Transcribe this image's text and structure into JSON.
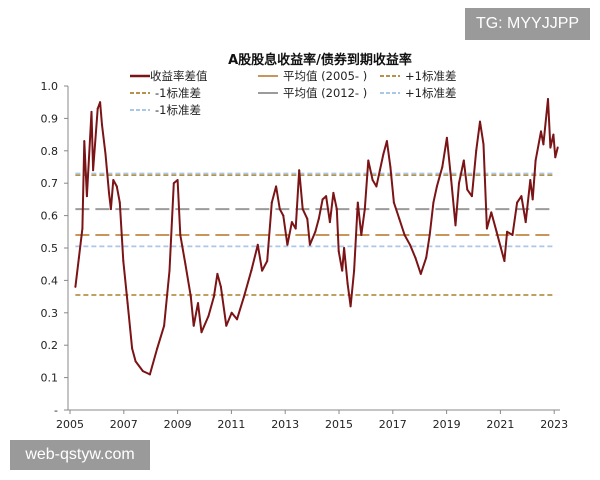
{
  "watermarks": {
    "top_right": "TG: MYYJJPP",
    "bottom_left": "web-qstyw.com"
  },
  "chart_data": {
    "type": "line",
    "title": "A股股息收益率/债券到期收益率",
    "xlabel": "",
    "ylabel": "",
    "xlim": [
      2005,
      2023.2
    ],
    "ylim": [
      0,
      1.0
    ],
    "x_ticks": [
      "2005",
      "2007",
      "2009",
      "2011",
      "2013",
      "2015",
      "2017",
      "2019",
      "2021",
      "2023"
    ],
    "y_ticks": [
      "-",
      "0.1",
      "0.2",
      "0.3",
      "0.4",
      "0.5",
      "0.6",
      "0.7",
      "0.8",
      "0.9",
      "1.0"
    ],
    "grid": false,
    "legend_placement": "top",
    "series": [
      {
        "name": "收益率差值",
        "color": "#7b1416",
        "style": "solid",
        "x": [
          2005.2,
          2005.33,
          2005.46,
          2005.53,
          2005.63,
          2005.8,
          2005.86,
          2006.03,
          2006.12,
          2006.19,
          2006.32,
          2006.45,
          2006.52,
          2006.61,
          2006.74,
          2006.85,
          2006.98,
          2007.14,
          2007.31,
          2007.44,
          2007.71,
          2007.97,
          2008.24,
          2008.5,
          2008.7,
          2008.86,
          2009.0,
          2009.1,
          2009.29,
          2009.49,
          2009.6,
          2009.76,
          2009.89,
          2010.15,
          2010.35,
          2010.48,
          2010.61,
          2010.81,
          2011.01,
          2011.21,
          2011.47,
          2011.74,
          2011.98,
          2012.14,
          2012.33,
          2012.5,
          2012.66,
          2012.8,
          2012.93,
          2013.08,
          2013.25,
          2013.39,
          2013.52,
          2013.65,
          2013.82,
          2013.92,
          2014.12,
          2014.25,
          2014.39,
          2014.52,
          2014.66,
          2014.79,
          2014.92,
          2014.99,
          2015.12,
          2015.19,
          2015.32,
          2015.43,
          2015.56,
          2015.7,
          2015.83,
          2015.96,
          2016.09,
          2016.25,
          2016.39,
          2016.52,
          2016.65,
          2016.78,
          2016.91,
          2017.04,
          2017.24,
          2017.44,
          2017.64,
          2017.84,
          2018.04,
          2018.24,
          2018.37,
          2018.51,
          2018.64,
          2018.84,
          2019.01,
          2019.17,
          2019.33,
          2019.46,
          2019.64,
          2019.77,
          2019.94,
          2020.1,
          2020.24,
          2020.37,
          2020.5,
          2020.66,
          2020.86,
          2021.02,
          2021.15,
          2021.25,
          2021.45,
          2021.62,
          2021.78,
          2021.94,
          2022.11,
          2022.2,
          2022.31,
          2022.51,
          2022.6,
          2022.77,
          2022.86,
          2022.97,
          2023.04,
          2023.13
        ],
        "values": [
          0.38,
          0.47,
          0.56,
          0.83,
          0.66,
          0.92,
          0.74,
          0.93,
          0.95,
          0.88,
          0.79,
          0.67,
          0.62,
          0.71,
          0.69,
          0.64,
          0.46,
          0.33,
          0.19,
          0.15,
          0.12,
          0.11,
          0.19,
          0.26,
          0.43,
          0.7,
          0.71,
          0.54,
          0.45,
          0.35,
          0.26,
          0.33,
          0.24,
          0.29,
          0.35,
          0.42,
          0.38,
          0.26,
          0.3,
          0.28,
          0.35,
          0.43,
          0.51,
          0.43,
          0.46,
          0.64,
          0.69,
          0.62,
          0.6,
          0.51,
          0.58,
          0.56,
          0.74,
          0.62,
          0.59,
          0.51,
          0.55,
          0.59,
          0.65,
          0.66,
          0.58,
          0.67,
          0.62,
          0.49,
          0.43,
          0.5,
          0.39,
          0.32,
          0.43,
          0.64,
          0.54,
          0.62,
          0.77,
          0.71,
          0.69,
          0.74,
          0.79,
          0.83,
          0.75,
          0.64,
          0.59,
          0.54,
          0.51,
          0.47,
          0.42,
          0.47,
          0.54,
          0.64,
          0.69,
          0.75,
          0.84,
          0.71,
          0.57,
          0.7,
          0.77,
          0.68,
          0.66,
          0.8,
          0.89,
          0.82,
          0.56,
          0.61,
          0.55,
          0.5,
          0.46,
          0.55,
          0.54,
          0.64,
          0.66,
          0.58,
          0.71,
          0.65,
          0.77,
          0.86,
          0.82,
          0.96,
          0.81,
          0.85,
          0.78,
          0.81
        ]
      },
      {
        "name": "平均值 (2005- )",
        "color": "#c8955a",
        "style": "longdash",
        "value": 0.54
      },
      {
        "name": "+1标准差",
        "color": "#b8924a",
        "style": "dash",
        "value": 0.725
      },
      {
        "name": "-1标准差",
        "color": "#b8924a",
        "style": "dash",
        "value": 0.355
      },
      {
        "name": "平均值 (2012- )",
        "color": "#9b9b9b",
        "style": "longdash",
        "value": 0.62
      },
      {
        "name": "+1标准差",
        "color": "#a9c7e6",
        "style": "dash",
        "value": 0.73
      },
      {
        "name": "-1标准差",
        "color": "#a9c7e6",
        "style": "dash",
        "value": 0.505
      }
    ]
  }
}
